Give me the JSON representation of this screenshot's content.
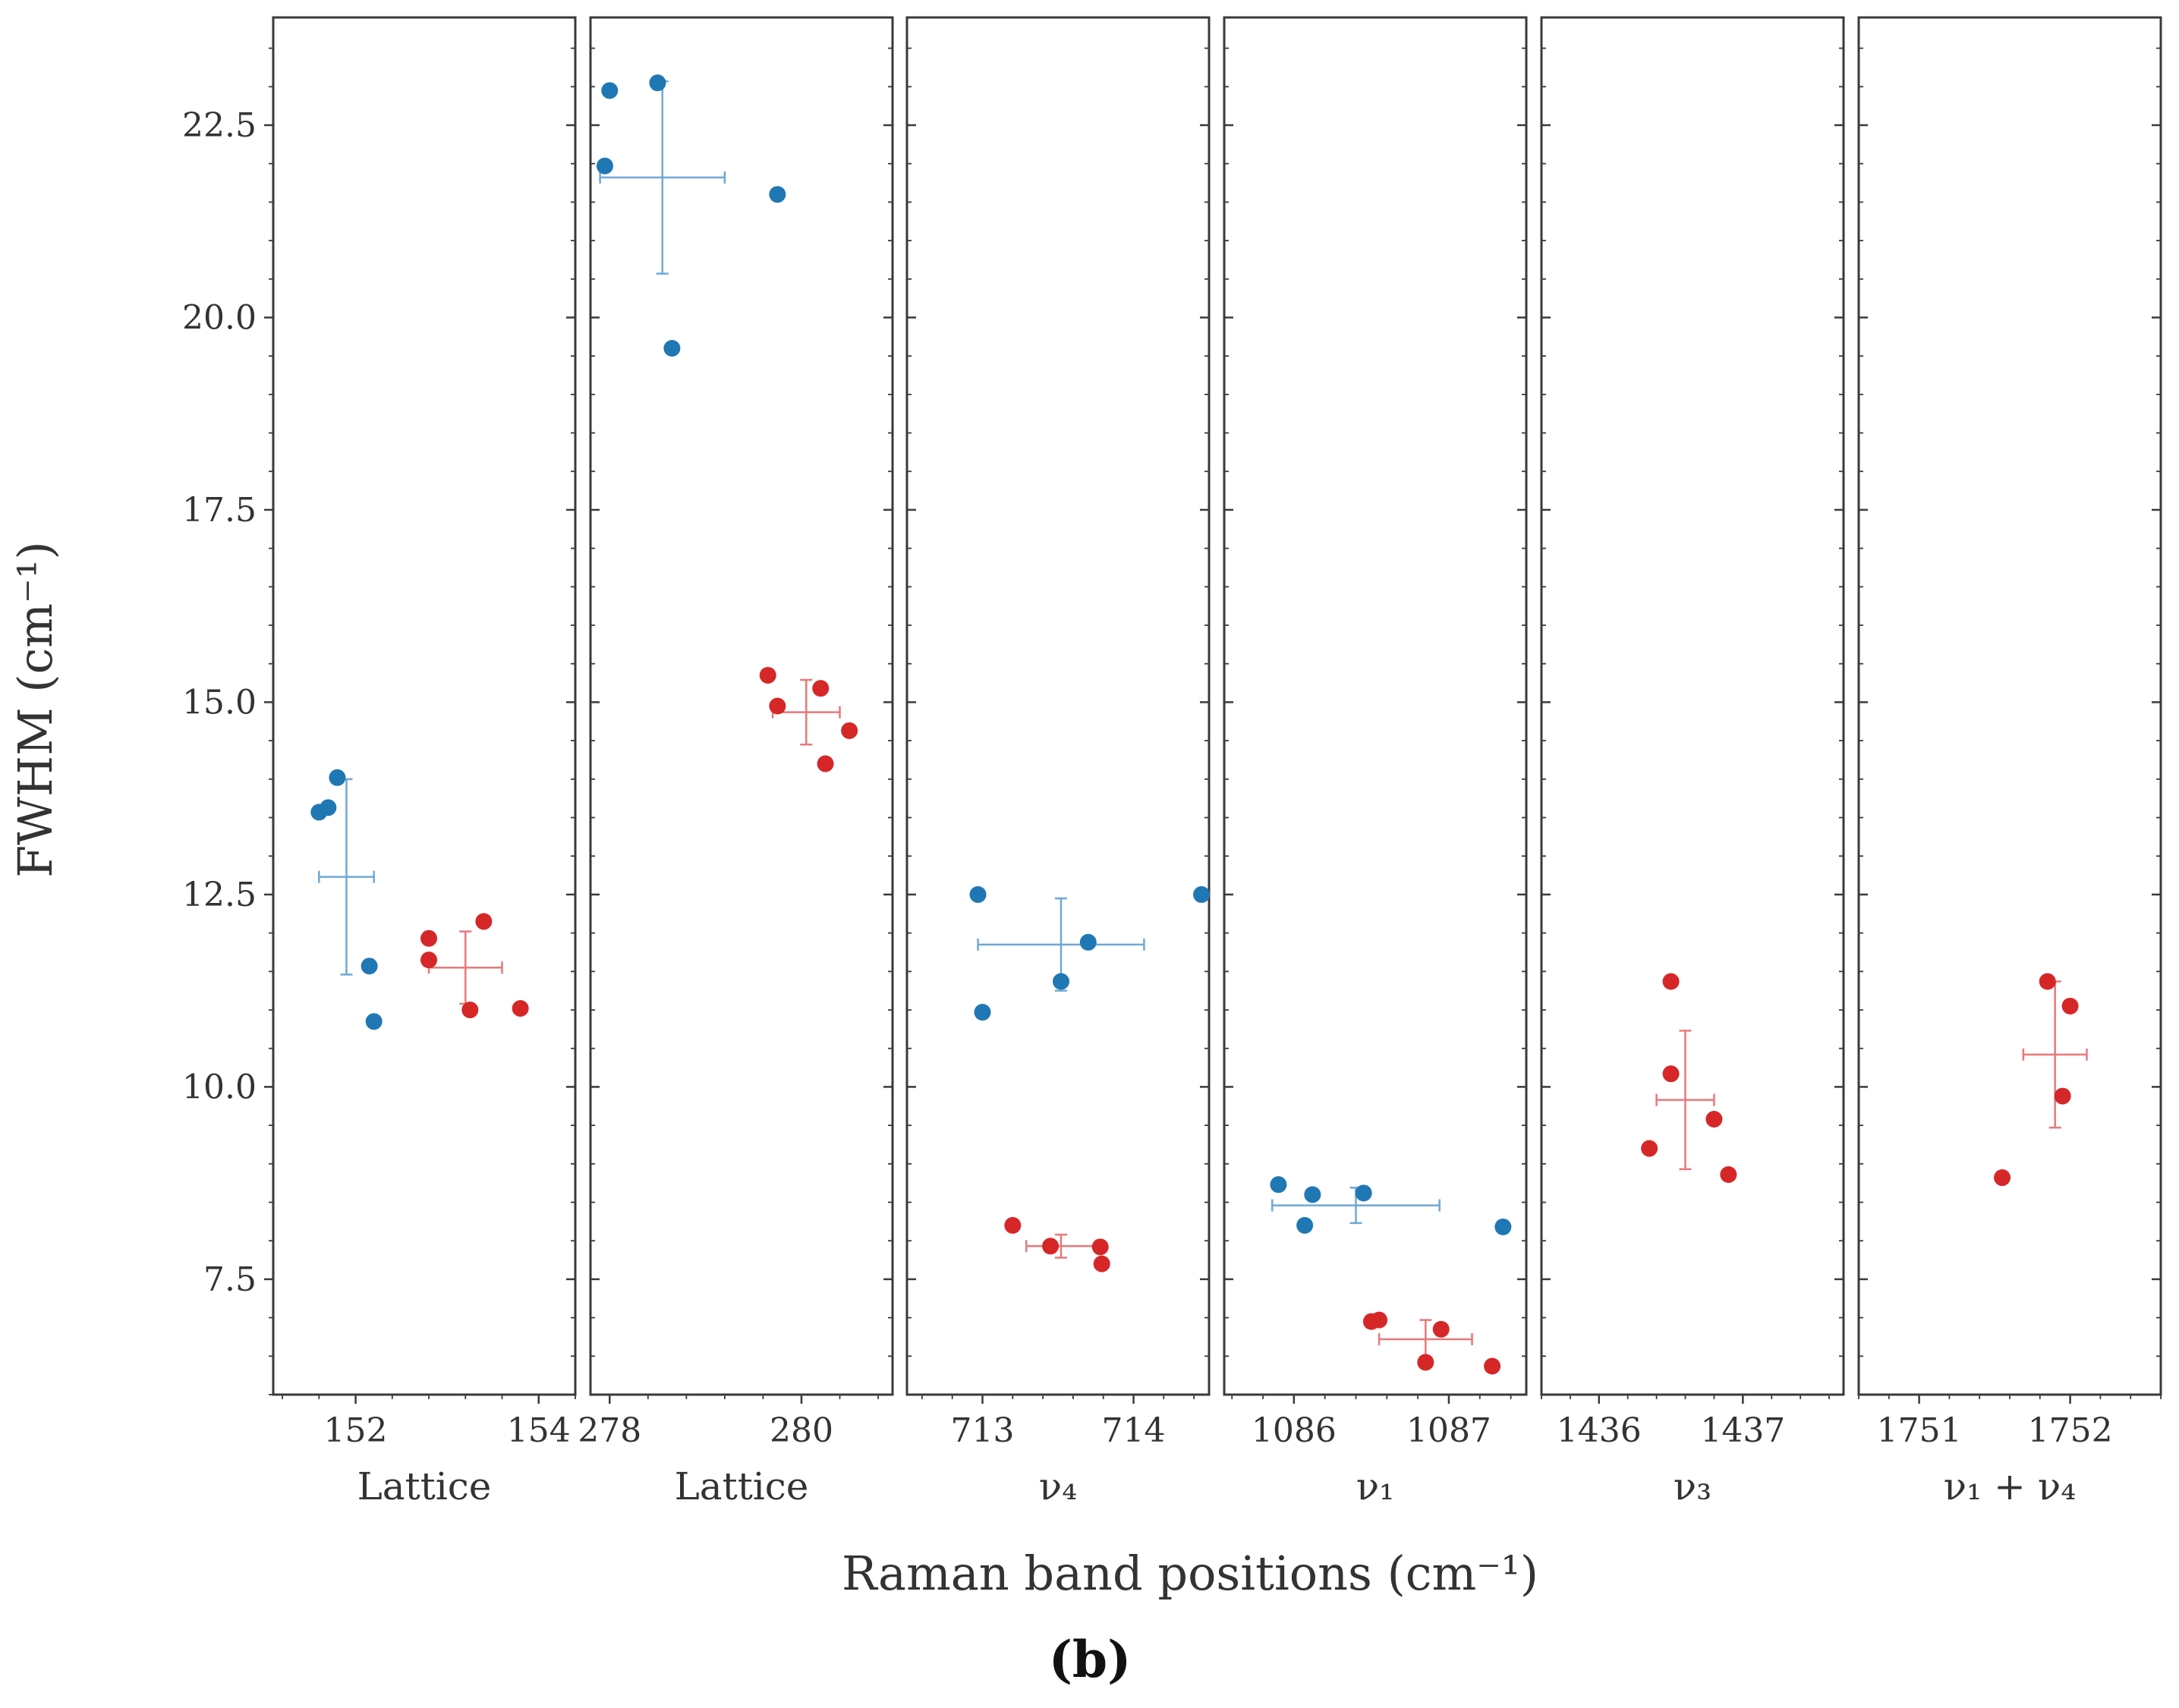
{
  "chart_data": {
    "type": "scatter",
    "title": "",
    "figure_label": "(b)",
    "xlabel": "Raman band positions (cm⁻¹)",
    "ylabel": "FWHM (cm⁻¹)",
    "ylim": [
      6.0,
      23.9
    ],
    "yticks": [
      7.5,
      10.0,
      12.5,
      15.0,
      17.5,
      20.0,
      22.5
    ],
    "yticklabels": [
      "7.5",
      "10.0",
      "12.5",
      "15.0",
      "17.5",
      "20.0",
      "22.5"
    ],
    "colors": {
      "blue": "#1f77b4",
      "red": "#d62728",
      "blue_err": "#6fa8d6",
      "red_err": "#e8787a",
      "frame": "#3a3a3a"
    },
    "panels": [
      {
        "label": "Lattice",
        "xlim": [
          151.1,
          154.4
        ],
        "xticks": [
          152,
          154
        ],
        "xticklabels": [
          "152",
          "154"
        ],
        "series": [
          {
            "name": "blue",
            "x": [
              151.6,
              151.7,
              151.8,
              152.15,
              152.2
            ],
            "y": [
              13.57,
              13.63,
              14.02,
              11.57,
              10.85
            ],
            "mean": {
              "x": 151.9,
              "y": 12.73,
              "xerr": 0.3,
              "yerr": 1.27
            }
          },
          {
            "name": "red",
            "x": [
              152.8,
              152.8,
              153.25,
              153.4,
              153.8
            ],
            "y": [
              11.93,
              11.65,
              11.0,
              12.15,
              11.02
            ],
            "mean": {
              "x": 153.2,
              "y": 11.55,
              "xerr": 0.4,
              "yerr": 0.47
            }
          }
        ]
      },
      {
        "label": "Lattice",
        "xlim": [
          277.8,
          280.95
        ],
        "xticks": [
          278,
          280
        ],
        "xticklabels": [
          "278",
          "280"
        ],
        "series": [
          {
            "name": "blue",
            "x": [
              278.0,
              277.95,
              278.5,
              278.65,
              279.75
            ],
            "y": [
              22.95,
              21.97,
              23.05,
              19.6,
              21.6
            ],
            "mean": {
              "x": 278.55,
              "y": 21.82,
              "xerr": 0.65,
              "yerr": 1.25
            }
          },
          {
            "name": "red",
            "x": [
              279.65,
              279.75,
              280.2,
              280.25,
              280.5
            ],
            "y": [
              15.35,
              14.95,
              15.18,
              14.2,
              14.63
            ],
            "mean": {
              "x": 280.05,
              "y": 14.87,
              "xerr": 0.35,
              "yerr": 0.42
            }
          }
        ]
      },
      {
        "label": "ν₄",
        "xlim": [
          712.5,
          714.5
        ],
        "xticks": [
          713,
          714
        ],
        "xticklabels": [
          "713",
          "714"
        ],
        "series": [
          {
            "name": "blue",
            "x": [
              712.97,
              713.0,
              713.52,
              713.7,
              714.45
            ],
            "y": [
              12.5,
              10.97,
              11.37,
              11.88,
              12.5
            ],
            "mean": {
              "x": 713.52,
              "y": 11.85,
              "xerr": 0.55,
              "yerr": 0.6
            }
          },
          {
            "name": "red",
            "x": [
              713.2,
              713.45,
              713.78,
              713.79
            ],
            "y": [
              8.2,
              7.93,
              7.92,
              7.7
            ],
            "mean": {
              "x": 713.52,
              "y": 7.93,
              "xerr": 0.23,
              "yerr": 0.15
            }
          }
        ]
      },
      {
        "label": "ν₁",
        "xlim": [
          1085.55,
          1087.5
        ],
        "xticks": [
          1086,
          1087
        ],
        "xticklabels": [
          "1086",
          "1087"
        ],
        "series": [
          {
            "name": "blue",
            "x": [
              1085.9,
              1086.07,
              1086.12,
              1086.45,
              1087.35
            ],
            "y": [
              8.73,
              8.2,
              8.6,
              8.62,
              8.18
            ],
            "mean": {
              "x": 1086.4,
              "y": 8.46,
              "xerr": 0.54,
              "yerr": 0.23
            }
          },
          {
            "name": "red",
            "x": [
              1086.5,
              1086.55,
              1086.85,
              1086.95,
              1087.28
            ],
            "y": [
              6.95,
              6.97,
              6.42,
              6.85,
              6.37
            ],
            "mean": {
              "x": 1086.85,
              "y": 6.72,
              "xerr": 0.3,
              "yerr": 0.25
            }
          }
        ]
      },
      {
        "label": "ν₃",
        "xlim": [
          1435.6,
          1437.7
        ],
        "xticks": [
          1436,
          1437
        ],
        "xticklabels": [
          "1436",
          "1437"
        ],
        "series": [
          {
            "name": "red",
            "x": [
              1436.35,
              1436.5,
              1436.5,
              1436.8,
              1436.9
            ],
            "y": [
              9.2,
              11.37,
              10.17,
              9.58,
              8.86
            ],
            "mean": {
              "x": 1436.6,
              "y": 9.83,
              "xerr": 0.2,
              "yerr": 0.9
            }
          }
        ]
      },
      {
        "label": "ν₁ + ν₄",
        "xlim": [
          1750.6,
          1752.6
        ],
        "xticks": [
          1751,
          1752
        ],
        "xticklabels": [
          "1751",
          "1752"
        ],
        "series": [
          {
            "name": "red",
            "x": [
              1751.55,
              1751.85,
              1751.95,
              1752.0
            ],
            "y": [
              8.82,
              11.37,
              9.88,
              11.05
            ],
            "mean": {
              "x": 1751.9,
              "y": 10.42,
              "xerr": 0.21,
              "yerr": 0.95
            }
          }
        ]
      }
    ]
  }
}
